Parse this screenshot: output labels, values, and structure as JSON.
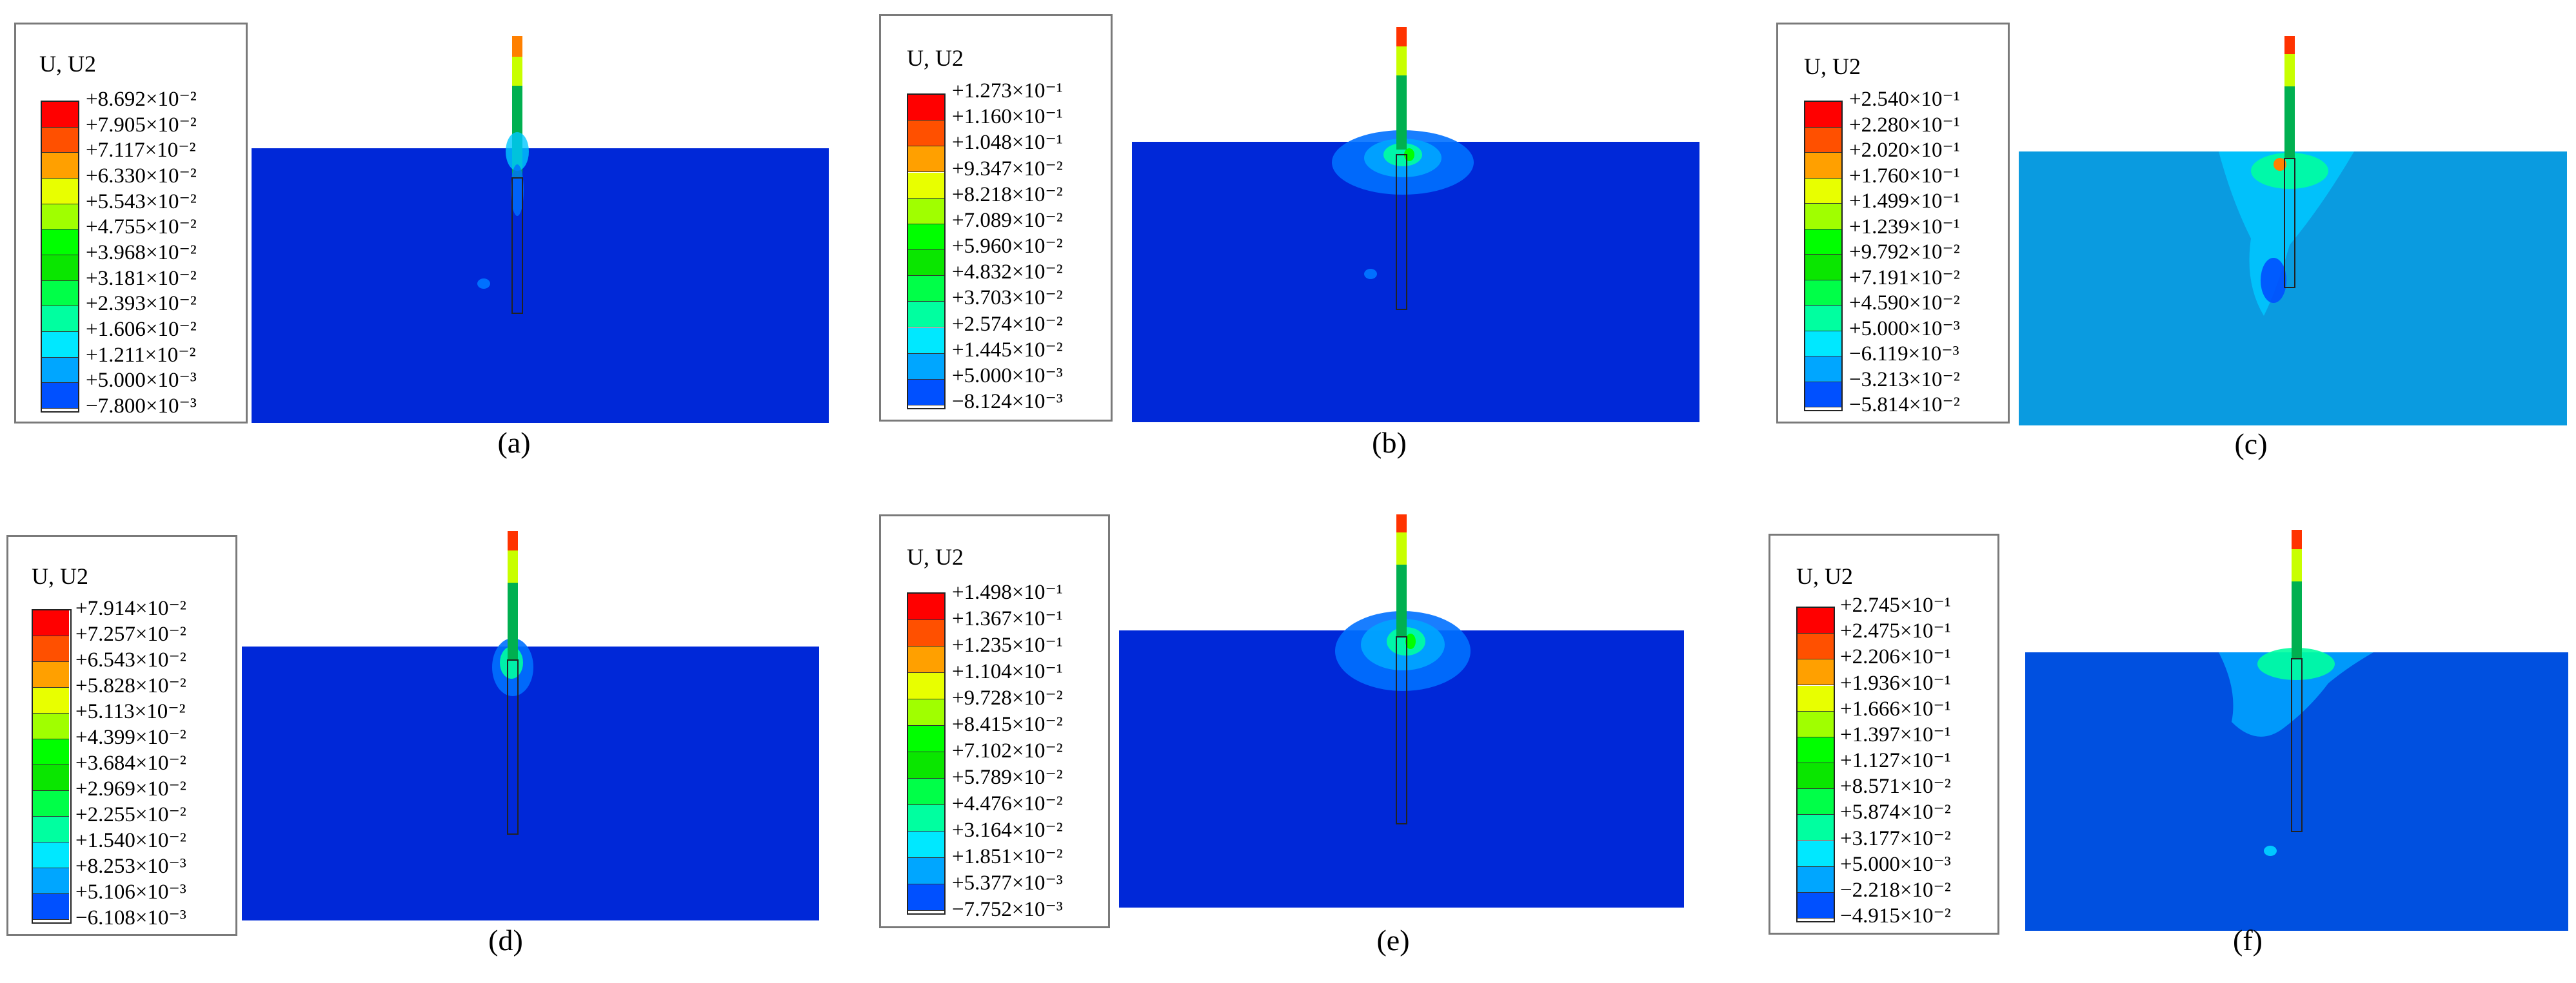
{
  "legend_title": "U, U2",
  "colors": {
    "scale": [
      "#0000ff",
      "#0050ff",
      "#00a6ff",
      "#00e8ff",
      "#00ffa0",
      "#00ff48",
      "#00ff00",
      "#0ae600",
      "#a0ff00",
      "#e8ff00",
      "#ffc000",
      "#ff8000",
      "#ff3300",
      "#ff0000"
    ],
    "soil_dark": "#0028d8",
    "soil_light": "#0a9be0",
    "pile": "#00b050",
    "pile_top": "#ff2a00",
    "highlight": "#00e070"
  },
  "panels": [
    {
      "caption": "(a)",
      "labels": [
        "+8.692×10⁻²",
        "+7.905×10⁻²",
        "+7.117×10⁻²",
        "+6.330×10⁻²",
        "+5.543×10⁻²",
        "+4.755×10⁻²",
        "+3.968×10⁻²",
        "+3.181×10⁻²",
        "+2.393×10⁻²",
        "+1.606×10⁻²",
        "+1.211×10⁻²",
        "+5.000×10⁻³",
        "−7.800×10⁻³"
      ]
    },
    {
      "caption": "(b)",
      "labels": [
        "+1.273×10⁻¹",
        "+1.160×10⁻¹",
        "+1.048×10⁻¹",
        "+9.347×10⁻²",
        "+8.218×10⁻²",
        "+7.089×10⁻²",
        "+5.960×10⁻²",
        "+4.832×10⁻²",
        "+3.703×10⁻²",
        "+2.574×10⁻²",
        "+1.445×10⁻²",
        "+5.000×10⁻³",
        "−8.124×10⁻³"
      ]
    },
    {
      "caption": "(c)",
      "labels": [
        "+2.540×10⁻¹",
        "+2.280×10⁻¹",
        "+2.020×10⁻¹",
        "+1.760×10⁻¹",
        "+1.499×10⁻¹",
        "+1.239×10⁻¹",
        "+9.792×10⁻²",
        "+7.191×10⁻²",
        "+4.590×10⁻²",
        "+5.000×10⁻³",
        "−6.119×10⁻³",
        "−3.213×10⁻²",
        "−5.814×10⁻²"
      ]
    },
    {
      "caption": "(d)",
      "labels": [
        "+7.914×10⁻²",
        "+7.257×10⁻²",
        "+6.543×10⁻²",
        "+5.828×10⁻²",
        "+5.113×10⁻²",
        "+4.399×10⁻²",
        "+3.684×10⁻²",
        "+2.969×10⁻²",
        "+2.255×10⁻²",
        "+1.540×10⁻²",
        "+8.253×10⁻³",
        "+5.106×10⁻³",
        "−6.108×10⁻³"
      ]
    },
    {
      "caption": "(e)",
      "labels": [
        "+1.498×10⁻¹",
        "+1.367×10⁻¹",
        "+1.235×10⁻¹",
        "+1.104×10⁻¹",
        "+9.728×10⁻²",
        "+8.415×10⁻²",
        "+7.102×10⁻²",
        "+5.789×10⁻²",
        "+4.476×10⁻²",
        "+3.164×10⁻²",
        "+1.851×10⁻²",
        "+5.377×10⁻³",
        "−7.752×10⁻³"
      ]
    },
    {
      "caption": "(f)",
      "labels": [
        "+2.745×10⁻¹",
        "+2.475×10⁻¹",
        "+2.206×10⁻¹",
        "+1.936×10⁻¹",
        "+1.666×10⁻¹",
        "+1.397×10⁻¹",
        "+1.127×10⁻¹",
        "+8.571×10⁻²",
        "+5.874×10⁻²",
        "+3.177×10⁻²",
        "+5.000×10⁻³",
        "−2.218×10⁻²",
        "−4.915×10⁻²"
      ]
    }
  ]
}
